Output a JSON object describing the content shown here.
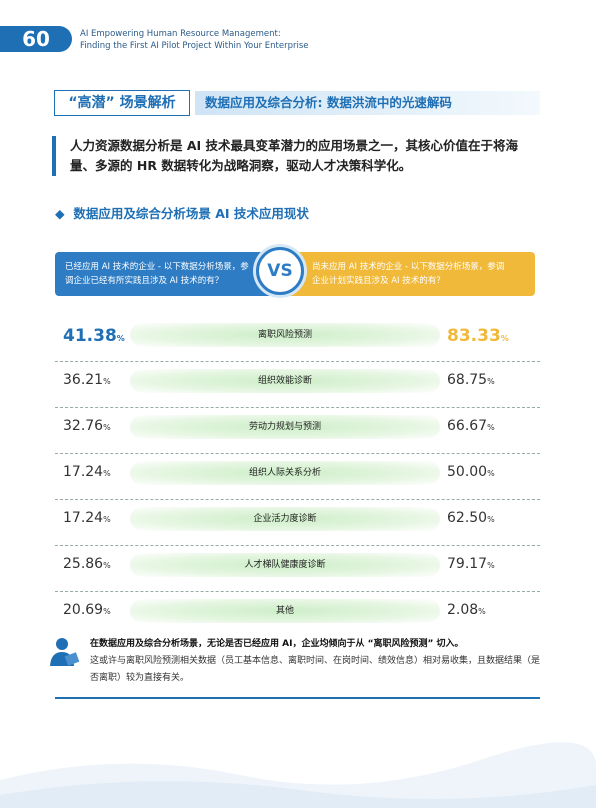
{
  "header": {
    "page_number": "60",
    "title_lines": [
      "AI Empowering Human Resource Management:",
      "Finding the First AI Pilot Project Within Your Enterprise"
    ]
  },
  "section": {
    "tag": "“高潜” 场景解析",
    "title": "数据应用及综合分析: 数据洪流中的光速解码"
  },
  "intro": "人力资源数据分析是 AI 技术最具变革潜力的应用场景之一，其核心价值在于将海量、多源的 HR 数据转化为战略洞察，驱动人才决策科学化。",
  "subheading": "数据应用及综合分析场景 AI 技术应用现状",
  "comparison": {
    "left_label": "已经应用 AI 技术的企业 - 以下数据分析场景，参调企业已经有所实践且涉及 AI 技术的有？",
    "vs": "VS",
    "right_label": "尚未应用 AI 技术的企业 - 以下数据分析场景，参调企业计划实践且涉及 AI 技术的有？",
    "unit": "%",
    "rows": [
      {
        "name": "离职风险预测",
        "left": 41.38,
        "right": 83.33
      },
      {
        "name": "组织效能诊断",
        "left": 36.21,
        "right": 68.75
      },
      {
        "name": "劳动力规划与预测",
        "left": 32.76,
        "right": 66.67
      },
      {
        "name": "组织人际关系分析",
        "left": 17.24,
        "right": {
          "value": 50,
          "label": "50.00"
        }
      },
      {
        "name": "企业活力度诊断",
        "left": 17.24,
        "right": {
          "value": 62.5,
          "label": "62.50"
        }
      },
      {
        "name": "人才梯队健康度诊断",
        "left": 25.86,
        "right": 79.17
      },
      {
        "name": "其他",
        "left": 20.69,
        "right": 2.08
      }
    ]
  },
  "note": {
    "bold": "在数据应用及综合分析场景，无论是否已经应用 AI，企业均倾向于从 “离职风险预测” 切入。",
    "text": "这或许与离职风险预测相关数据（员工基本信息、离职时间、在岗时间、绩效信息）相对易收集，且数据结果（是否离职）较为直接有关。"
  }
}
